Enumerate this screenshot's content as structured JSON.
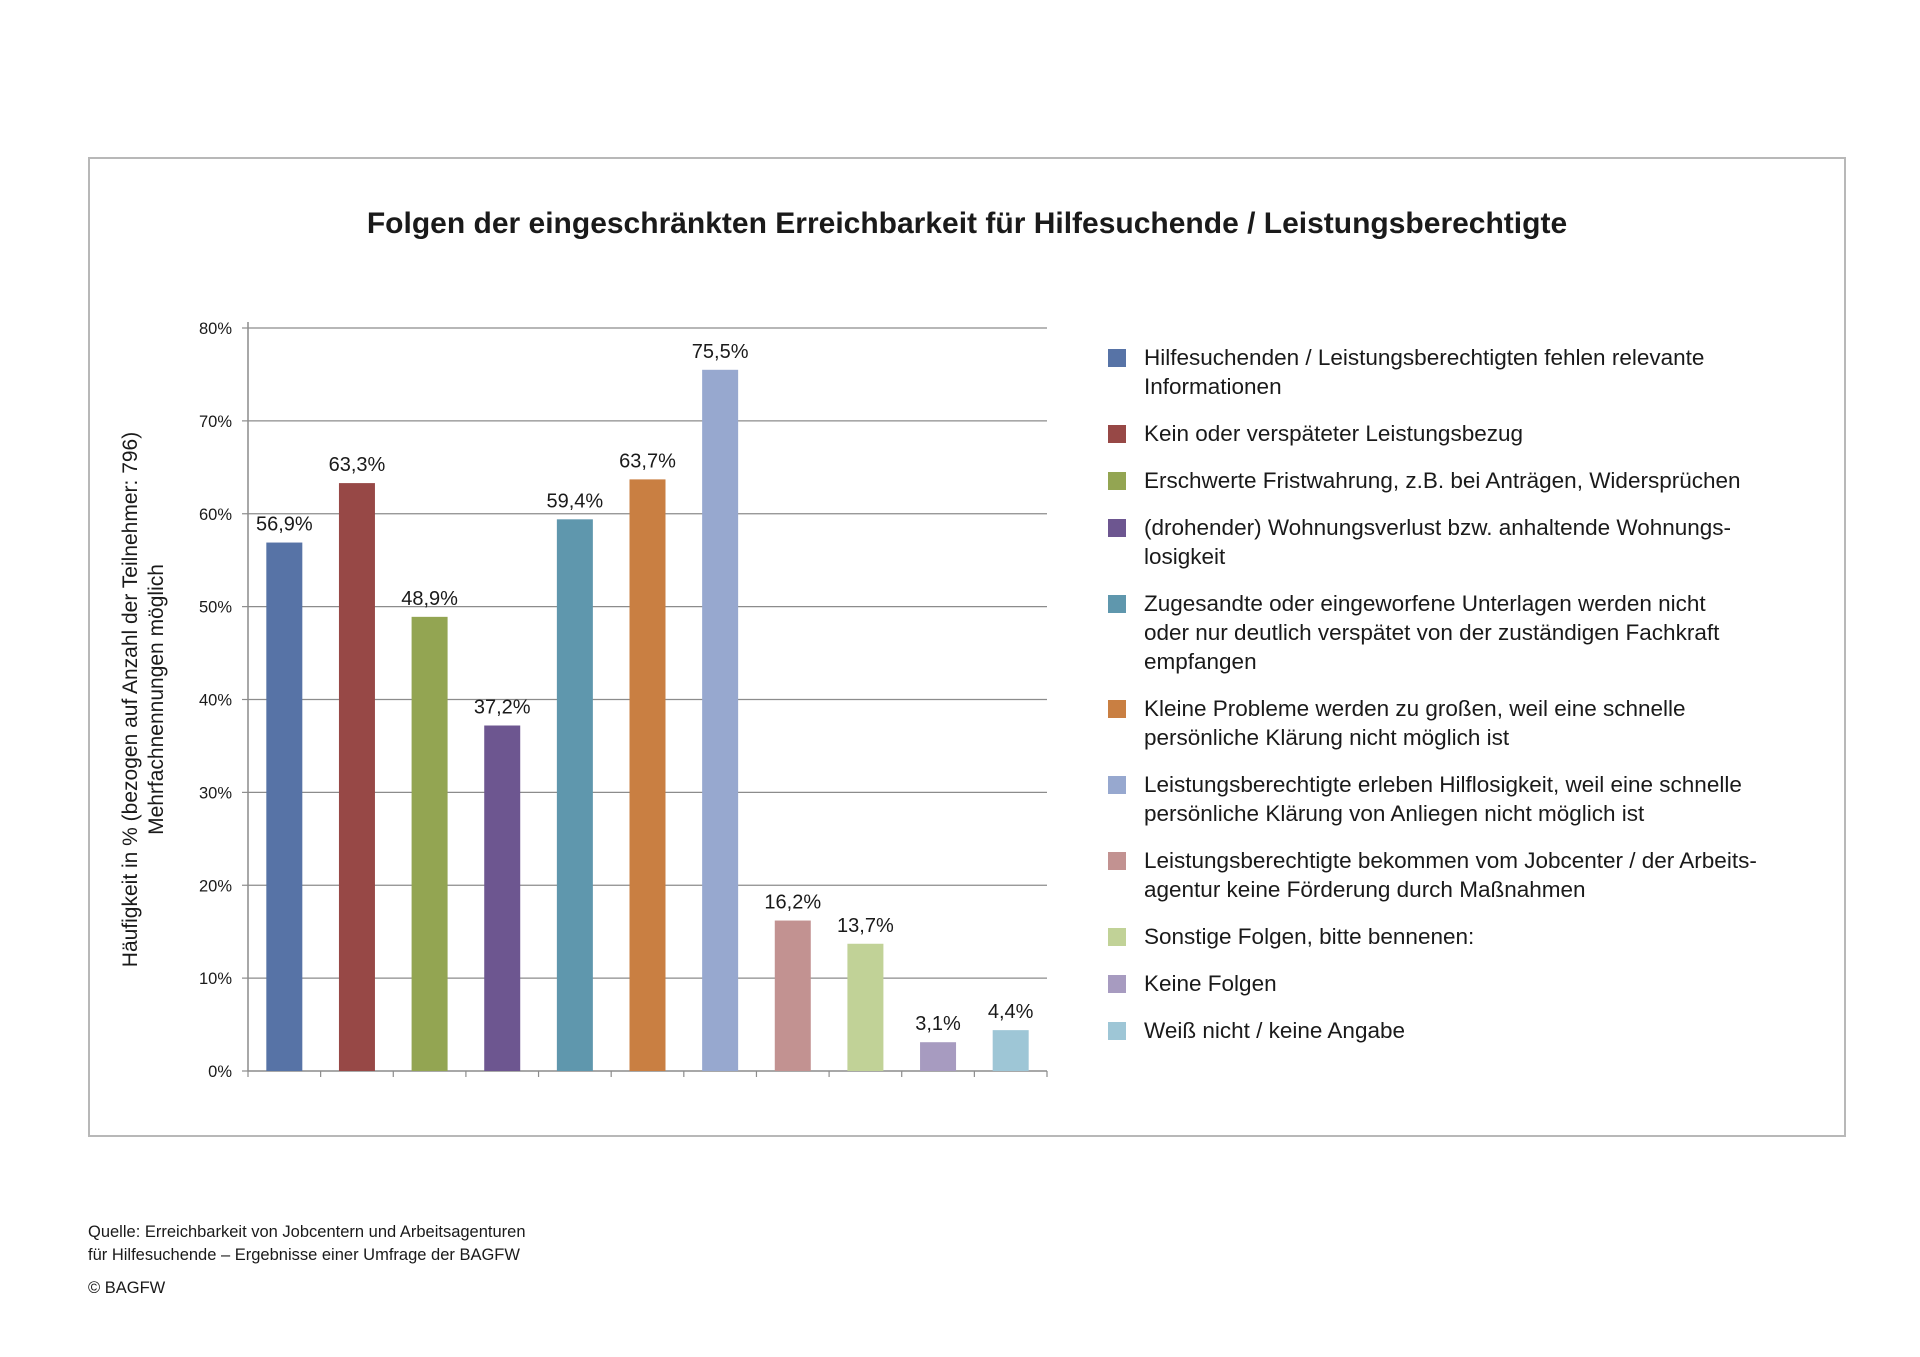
{
  "chart_data": {
    "type": "bar",
    "title": "Folgen der eingeschränkten Erreichbarkeit für Hilfesuchende / Leistungsberechtigte",
    "ylabel_line1": "Häufigkeit in % (bezogen auf Anzahl der Teilnehmer: 796)",
    "ylabel_line2": "Mehrfachnennungen möglich",
    "ylim": [
      0,
      80
    ],
    "yticks": [
      "0%",
      "10%",
      "20%",
      "30%",
      "40%",
      "50%",
      "60%",
      "70%",
      "80%"
    ],
    "grid": true,
    "legend_position": "right",
    "categories": [
      "Hilfesuchenden / Leistungsberechtigten fehlen relevante Informationen",
      "Kein oder verspäteter Leistungsbezug",
      "Erschwerte Fristwahrung, z.B. bei Anträgen, Widersprüchen",
      "(drohender) Wohnungsverlust bzw. anhaltende Wohnungs- losigkeit",
      "Zugesandte oder eingeworfene Unterlagen werden nicht oder nur deutlich verspätet von der zuständigen Fachkraft empfangen",
      "Kleine Probleme werden zu großen, weil eine schnelle persönliche Klärung nicht möglich ist",
      "Leistungsberechtigte erleben Hilflosigkeit, weil eine schnelle persönliche Klärung von Anliegen nicht möglich ist",
      "Leistungsberechtigte bekommen vom Jobcenter / der Arbeits- agentur keine Förderung durch Maßnahmen",
      "Sonstige Folgen, bitte bennenen:",
      "Keine Folgen",
      "Weiß nicht / keine Angabe"
    ],
    "values": [
      56.9,
      63.3,
      48.9,
      37.2,
      59.4,
      63.7,
      75.5,
      16.2,
      13.7,
      3.1,
      4.4
    ],
    "value_labels": [
      "56,9%",
      "63,3%",
      "48,9%",
      "37,2%",
      "59,4%",
      "63,7%",
      "75,5%",
      "16,2%",
      "13,7%",
      "3,1%",
      "4,4%"
    ],
    "colors": [
      "#5773a6",
      "#974846",
      "#93a552",
      "#6d5690",
      "#5f97ad",
      "#c97f42",
      "#97a8cf",
      "#c29291",
      "#c1d297",
      "#a79bc0",
      "#9ec6d6"
    ]
  },
  "legend": [
    {
      "line1": "Hilfesuchenden / Leistungsberechtigten fehlen relevante",
      "line2": "Informationen"
    },
    {
      "line1": "Kein oder verspäteter Leistungsbezug",
      "line2": ""
    },
    {
      "line1": "Erschwerte Fristwahrung, z.B. bei Anträgen, Widersprüchen",
      "line2": ""
    },
    {
      "line1": "(drohender) Wohnungsverlust bzw. anhaltende Wohnungs-",
      "line2": "losigkeit"
    },
    {
      "line1": "Zugesandte oder eingeworfene Unterlagen werden nicht",
      "line2": "oder nur deutlich verspätet von der zuständigen Fachkraft",
      "line3": "empfangen"
    },
    {
      "line1": "Kleine Probleme werden zu großen, weil eine schnelle",
      "line2": "persönliche Klärung nicht möglich ist"
    },
    {
      "line1": "Leistungsberechtigte erleben Hilflosigkeit, weil eine schnelle",
      "line2": "persönliche Klärung von Anliegen nicht möglich ist"
    },
    {
      "line1": "Leistungsberechtigte bekommen vom Jobcenter / der Arbeits-",
      "line2": "agentur keine Förderung durch Maßnahmen"
    },
    {
      "line1": "Sonstige Folgen, bitte bennenen:",
      "line2": ""
    },
    {
      "line1": "Keine Folgen",
      "line2": ""
    },
    {
      "line1": "Weiß nicht / keine Angabe",
      "line2": ""
    }
  ],
  "footer": {
    "source_line1": "Quelle: Erreichbarkeit von Jobcentern und Arbeitsagenturen",
    "source_line2": "für Hilfesuchende – Ergebnisse einer Umfrage der BAGFW",
    "copyright": "© BAGFW"
  }
}
